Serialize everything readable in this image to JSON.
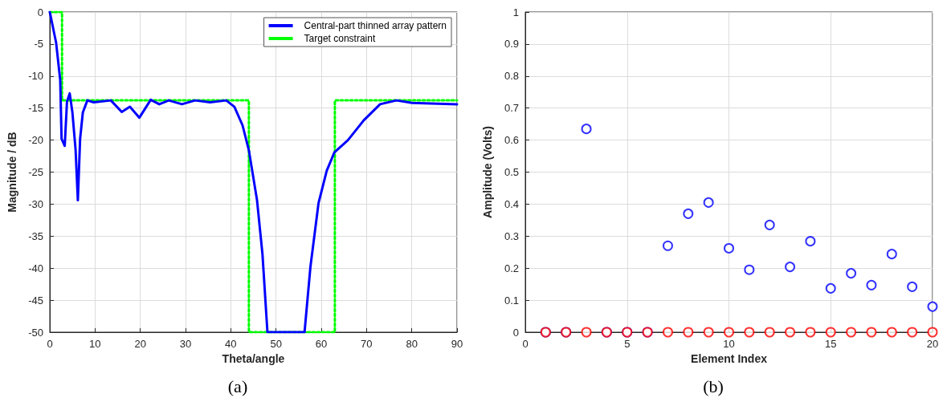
{
  "chart_data": [
    {
      "type": "line",
      "xlabel": "Theta/angle",
      "ylabel": "Magnitude / dB",
      "xlim": [
        0,
        90
      ],
      "ylim": [
        -50,
        0
      ],
      "xticks": [
        0,
        10,
        20,
        30,
        40,
        50,
        60,
        70,
        80,
        90
      ],
      "yticks": [
        -50,
        -45,
        -40,
        -35,
        -30,
        -25,
        -20,
        -15,
        -10,
        -5,
        0
      ],
      "grid": true,
      "legend": "top right",
      "annotations": [
        "(a)"
      ],
      "series": [
        {
          "name": "Central-part thinned array pattern",
          "color": "#0000ff",
          "line_style": "solid",
          "x": [
            0,
            1.4,
            2.3,
            2.6,
            3.3,
            3.8,
            4.4,
            5,
            5.7,
            6.2,
            6.7,
            7.3,
            8.3,
            9.7,
            13.5,
            15.9,
            17.7,
            19.8,
            22.3,
            24.2,
            26.3,
            29.2,
            32.1,
            35.4,
            39,
            40.8,
            42.6,
            44,
            45.8,
            47,
            48.1,
            56.3,
            57.6,
            59.4,
            61.2,
            62.9,
            65.9,
            69.4,
            73,
            76.6,
            80.1,
            90
          ],
          "values": [
            0,
            -4.8,
            -10.6,
            -19.8,
            -20.9,
            -14,
            -12.7,
            -15.7,
            -21.5,
            -29.4,
            -19.8,
            -15.7,
            -13.8,
            -14.1,
            -13.8,
            -15.6,
            -14.8,
            -16.5,
            -13.7,
            -14.4,
            -13.8,
            -14.4,
            -13.8,
            -14.1,
            -13.8,
            -14.8,
            -17.7,
            -21.6,
            -29.4,
            -37.8,
            -50,
            -50,
            -39.8,
            -29.8,
            -24.8,
            -21.9,
            -20,
            -16.9,
            -14.4,
            -13.8,
            -14.2,
            -14.4
          ]
        },
        {
          "name": "Target constraint",
          "color": "#00ff00",
          "line_style": "dotted",
          "x": [
            0,
            2.7,
            2.7,
            44,
            44,
            63,
            63,
            90
          ],
          "values": [
            0,
            0,
            -13.8,
            -13.8,
            -50,
            -50,
            -13.8,
            -13.8
          ]
        }
      ]
    },
    {
      "type": "scatter",
      "xlabel": "Element Index",
      "ylabel": "Amplitude (Volts)",
      "xlim": [
        0,
        20
      ],
      "ylim": [
        0,
        1
      ],
      "xticks": [
        0,
        5,
        10,
        15,
        20
      ],
      "yticks": [
        0,
        0.1,
        0.2,
        0.3,
        0.4,
        0.5,
        0.6,
        0.7,
        0.8,
        0.9,
        1
      ],
      "grid": true,
      "marker": "circle",
      "annotations": [
        "(b)"
      ],
      "x": [
        1,
        2,
        3,
        4,
        5,
        6,
        7,
        8,
        9,
        10,
        11,
        12,
        13,
        14,
        15,
        16,
        17,
        18,
        19,
        20
      ],
      "series": [
        {
          "color": "#0000ff",
          "values": [
            0,
            0,
            0.635,
            0,
            0,
            0,
            0.27,
            0.37,
            0.405,
            0.262,
            0.195,
            0.335,
            0.204,
            0.284,
            0.137,
            0.184,
            0.147,
            0.244,
            0.142,
            0.08
          ]
        },
        {
          "color": "#ff0000",
          "values": [
            0,
            0,
            0,
            0,
            0,
            0,
            0,
            0,
            0,
            0,
            0,
            0,
            0,
            0,
            0,
            0,
            0,
            0,
            0,
            0
          ]
        }
      ]
    }
  ]
}
